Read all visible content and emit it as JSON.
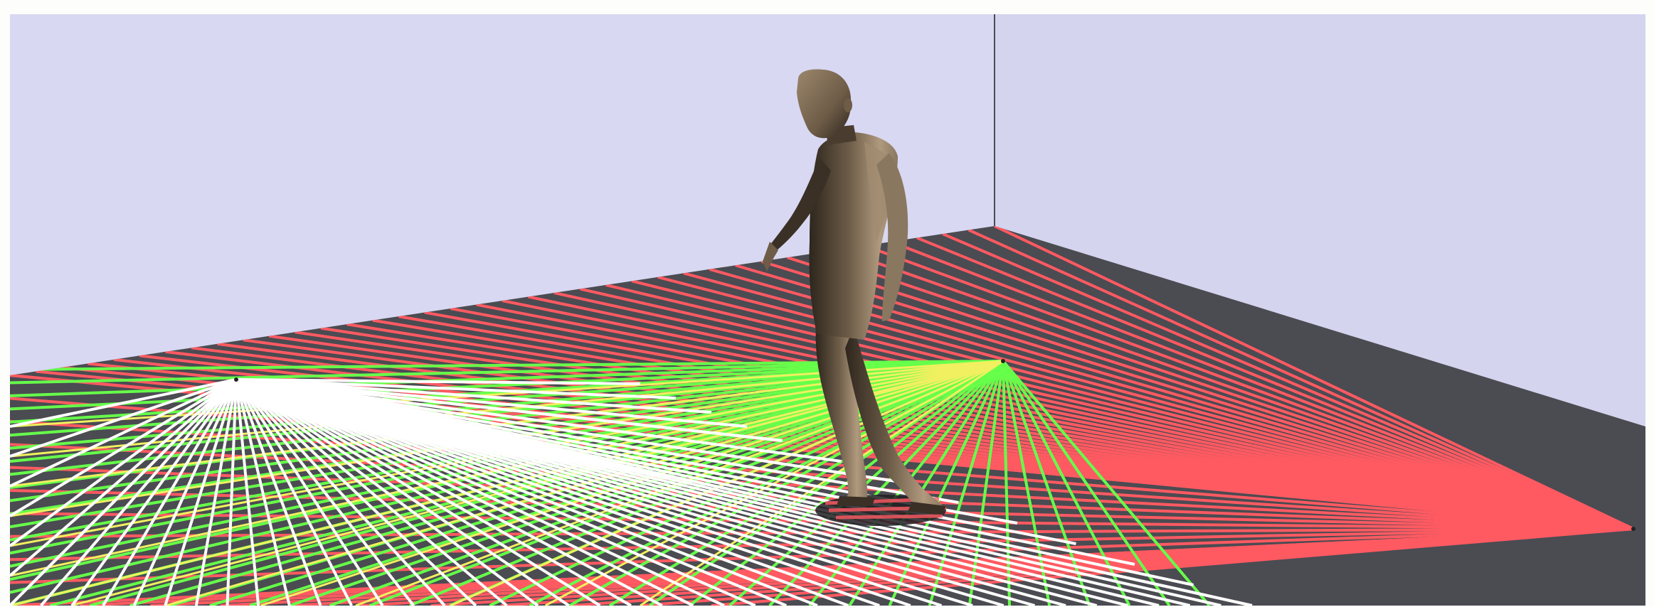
{
  "scene": {
    "colors": {
      "page_background": "#fdfdfb",
      "wall": "#d8d8f2",
      "floor": "#4b4b52",
      "floor_shade": "#55555c",
      "wall_edge": "#4a4a52",
      "beam_red": "#ff5a62",
      "beam_green": "#66ff4a",
      "beam_white": "#ffffff",
      "beam_yellow": "#f0f060",
      "figure_light": "#b09a7e",
      "figure_mid": "#8a7760",
      "figure_dark": "#2e261d",
      "shadow": "#1e1e22"
    },
    "emitters": [
      {
        "name": "white-emitter",
        "color_key": "beam_white"
      },
      {
        "name": "green-emitter",
        "color_key": "beam_green"
      },
      {
        "name": "red-emitter",
        "color_key": "beam_red"
      }
    ],
    "figure": {
      "description_icon": "human-figure-icon"
    }
  }
}
